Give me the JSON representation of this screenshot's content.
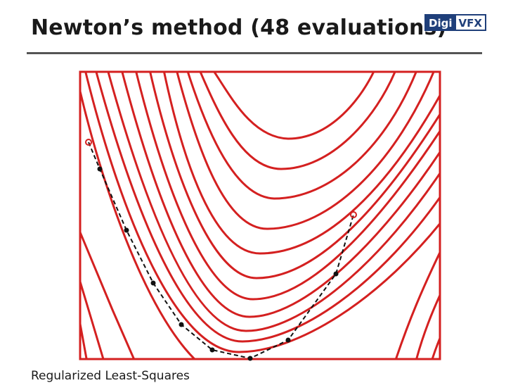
{
  "header": {
    "title": "Newton’s method (48 evaluations)",
    "logo": {
      "part1": "Digi",
      "part2": "VFX"
    }
  },
  "footer": {
    "text": "Regularized Least-Squares"
  },
  "colors": {
    "contour": "#d42020",
    "path": "#111111",
    "rule": "#555555",
    "logo": "#1f3f7a"
  }
}
